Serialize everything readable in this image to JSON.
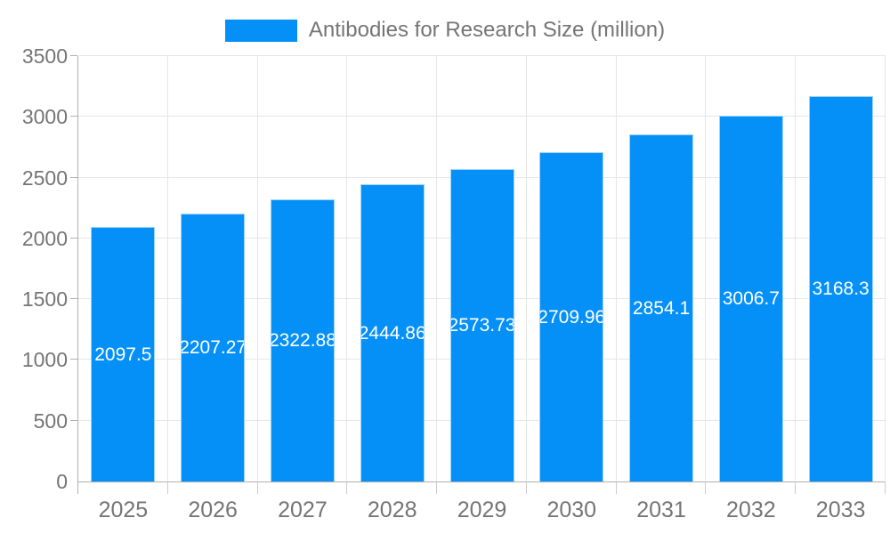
{
  "legend": {
    "label": "Antibodies for Research Size (million)"
  },
  "chart_data": {
    "type": "bar",
    "title": "Antibodies for Research Size (million)",
    "categories": [
      "2025",
      "2026",
      "2027",
      "2028",
      "2029",
      "2030",
      "2031",
      "2032",
      "2033"
    ],
    "values": [
      2097.5,
      2207.27,
      2322.88,
      2444.86,
      2573.73,
      2709.96,
      2854.1,
      3006.7,
      3168.3
    ],
    "bar_labels": [
      "2097.5",
      "2207.27",
      "2322.88",
      "2444.86",
      "2573.73",
      "2709.96",
      "2854.1",
      "3006.7",
      "3168.3"
    ],
    "xlabel": "",
    "ylabel": "",
    "ylim": [
      0,
      3500
    ],
    "yticks": [
      0,
      500,
      1000,
      1500,
      2000,
      2500,
      3000,
      3500
    ],
    "grid": true,
    "legend_position": "top",
    "colors": {
      "bar_fill": "#0590f8",
      "bar_border": "#9ed3fa",
      "value_label": "#ffffff",
      "axis_text": "#757575",
      "gridline": "#e6e6e6",
      "axis_line": "#b0b0b0",
      "tick_line": "#cccccc"
    }
  }
}
